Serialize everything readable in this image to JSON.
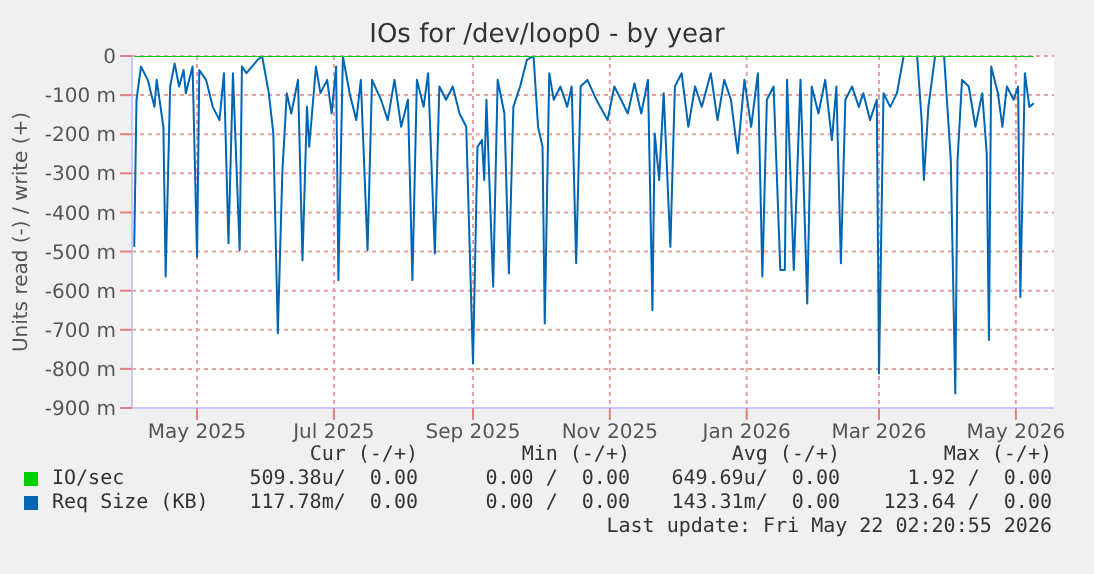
{
  "chart_data": {
    "type": "line",
    "title": "IOs for /dev/loop0 - by year",
    "ylabel": "Units read (-) / write (+)",
    "xlim": [
      "2025-04-17",
      "2026-06-02"
    ],
    "xticks": [
      {
        "value": "2025-05-16",
        "label": "May 2025"
      },
      {
        "value": "2025-07-16",
        "label": "Jul 2025"
      },
      {
        "value": "2025-09-16",
        "label": "Sep 2025"
      },
      {
        "value": "2025-11-16",
        "label": "Nov 2025"
      },
      {
        "value": "2026-01-16",
        "label": "Jan 2026"
      },
      {
        "value": "2026-03-16",
        "label": "Mar 2026"
      },
      {
        "value": "2026-05-16",
        "label": "May 2026"
      }
    ],
    "ylim": [
      -900,
      0
    ],
    "yticks": [
      0,
      {
        "value": -100,
        "label": "-100 m"
      },
      {
        "value": -200,
        "label": "-200 m"
      },
      {
        "value": -300,
        "label": "-300 m"
      },
      {
        "value": -400,
        "label": "-400 m"
      },
      {
        "value": -500,
        "label": "-500 m"
      },
      {
        "value": -600,
        "label": "-600 m"
      },
      {
        "value": -700,
        "label": "-700 m"
      },
      {
        "value": -800,
        "label": "-800 m"
      },
      {
        "value": -900,
        "label": "-900 m"
      }
    ],
    "grid": true,
    "legend": "bottom",
    "series": [
      {
        "name": "IO/sec",
        "color": "#00cc00",
        "x": [
          "2025-04-18",
          "2026-05-24"
        ],
        "values": [
          0,
          0
        ]
      },
      {
        "name": "Req Size (KB)",
        "color": "#0066b3",
        "x": [
          "2025-04-18",
          "2025-04-19",
          "2025-04-21",
          "2025-04-24",
          "2025-04-27",
          "2025-04-28",
          "2025-05-01",
          "2025-05-02",
          "2025-05-04",
          "2025-05-06",
          "2025-05-08",
          "2025-05-10",
          "2025-05-11",
          "2025-05-14",
          "2025-05-16",
          "2025-05-17",
          "2025-05-20",
          "2025-05-23",
          "2025-05-26",
          "2025-05-28",
          "2025-05-30",
          "2025-06-01",
          "2025-06-04",
          "2025-06-05",
          "2025-06-07",
          "2025-06-12",
          "2025-06-14",
          "2025-06-17",
          "2025-06-19",
          "2025-06-21",
          "2025-06-23",
          "2025-06-25",
          "2025-06-27",
          "2025-06-30",
          "2025-07-02",
          "2025-07-04",
          "2025-07-05",
          "2025-07-08",
          "2025-07-10",
          "2025-07-13",
          "2025-07-15",
          "2025-07-17",
          "2025-07-18",
          "2025-07-20",
          "2025-07-23",
          "2025-07-26",
          "2025-07-28",
          "2025-07-31",
          "2025-08-02",
          "2025-08-06",
          "2025-08-09",
          "2025-08-12",
          "2025-08-15",
          "2025-08-18",
          "2025-08-20",
          "2025-08-22",
          "2025-08-25",
          "2025-08-27",
          "2025-08-30",
          "2025-09-01",
          "2025-09-04",
          "2025-09-07",
          "2025-09-10",
          "2025-09-13",
          "2025-09-16",
          "2025-09-18",
          "2025-09-20",
          "2025-09-21",
          "2025-09-22",
          "2025-09-25",
          "2025-09-27",
          "2025-09-30",
          "2025-10-02",
          "2025-10-04",
          "2025-10-07",
          "2025-10-10",
          "2025-10-13",
          "2025-10-15",
          "2025-10-17",
          "2025-10-18",
          "2025-10-20",
          "2025-10-22",
          "2025-10-25",
          "2025-10-28",
          "2025-10-30",
          "2025-11-01",
          "2025-11-03",
          "2025-11-06",
          "2025-11-10",
          "2025-11-15",
          "2025-11-18",
          "2025-11-21",
          "2025-11-24",
          "2025-11-27",
          "2025-11-30",
          "2025-12-03",
          "2025-12-05",
          "2025-12-06",
          "2025-12-08",
          "2025-12-10",
          "2025-12-13",
          "2025-12-15",
          "2025-12-18",
          "2025-12-21",
          "2025-12-24",
          "2025-12-27",
          "2025-12-31",
          "2026-01-03",
          "2026-01-06",
          "2026-01-09",
          "2026-01-12",
          "2026-01-15",
          "2026-01-18",
          "2026-01-21",
          "2026-01-23",
          "2026-01-25",
          "2026-01-28",
          "2026-01-31",
          "2026-02-02",
          "2026-02-03",
          "2026-02-06",
          "2026-02-09",
          "2026-02-12",
          "2026-02-14",
          "2026-02-17",
          "2026-02-20",
          "2026-02-23",
          "2026-02-25",
          "2026-02-27",
          "2026-03-01",
          "2026-03-04",
          "2026-03-07",
          "2026-03-09",
          "2026-03-12",
          "2026-03-15",
          "2026-03-16",
          "2026-03-18",
          "2026-03-21",
          "2026-03-24",
          "2026-03-27",
          "2026-04-02",
          "2026-04-04",
          "2026-04-05",
          "2026-04-07",
          "2026-04-10",
          "2026-04-14",
          "2026-04-17",
          "2026-04-19",
          "2026-04-20",
          "2026-04-22",
          "2026-04-25",
          "2026-04-28",
          "2026-05-01",
          "2026-05-03",
          "2026-05-04",
          "2026-05-05",
          "2026-05-08",
          "2026-05-10",
          "2026-05-12",
          "2026-05-15",
          "2026-05-17",
          "2026-05-18",
          "2026-05-20",
          "2026-05-22",
          "2026-05-24"
        ],
        "values": [
          -488,
          -112,
          -27,
          -61,
          -130,
          -61,
          -181,
          -564,
          -78,
          -19,
          -78,
          -36,
          -95,
          -27,
          -513,
          -36,
          -61,
          -130,
          -164,
          -44,
          -479,
          -44,
          -496,
          -27,
          -44,
          -10,
          0,
          -95,
          -198,
          -709,
          -300,
          -95,
          -147,
          -61,
          -522,
          -130,
          -232,
          -27,
          -95,
          -61,
          -147,
          -27,
          -573,
          0,
          -95,
          -164,
          -61,
          -496,
          -61,
          -112,
          -164,
          -61,
          -181,
          -112,
          -573,
          -61,
          -130,
          -44,
          -505,
          -78,
          -112,
          -78,
          -147,
          -181,
          -786,
          -232,
          -215,
          -317,
          -112,
          -590,
          -61,
          -147,
          -556,
          -130,
          -78,
          -10,
          0,
          -181,
          -232,
          -684,
          -44,
          -112,
          -78,
          -130,
          -78,
          -530,
          -78,
          -61,
          -112,
          -164,
          -78,
          -112,
          -147,
          -70,
          -147,
          -61,
          -650,
          -198,
          -317,
          -95,
          -488,
          -78,
          -44,
          -181,
          -78,
          -130,
          -44,
          -164,
          -61,
          -112,
          -249,
          -61,
          -181,
          -44,
          -564,
          -112,
          -78,
          -547,
          -547,
          -61,
          -547,
          -61,
          -633,
          -78,
          -147,
          -61,
          -215,
          -78,
          -530,
          -112,
          -78,
          -130,
          -95,
          -164,
          -112,
          -812,
          -95,
          -130,
          -95,
          0,
          0,
          -164,
          -317,
          -130,
          0,
          0,
          -266,
          -863,
          -266,
          -61,
          -78,
          -181,
          -95,
          -249,
          -726,
          -27,
          -95,
          -181,
          -78,
          -112,
          -78,
          -616,
          -44,
          -130,
          -121
        ]
      }
    ],
    "annotations": [
      "Cur (-/+)",
      "Min (-/+)",
      "Avg (-/+)",
      "Max (-/+)",
      "509.38u/  0.00",
      "0.00 /  0.00",
      "649.69u/  0.00",
      "1.92 /  0.00",
      "117.78m/  0.00",
      "0.00 /  0.00",
      "143.31m/  0.00",
      "123.64 /  0.00",
      "Last update: Fri May 22 02:20:55 2026"
    ]
  }
}
